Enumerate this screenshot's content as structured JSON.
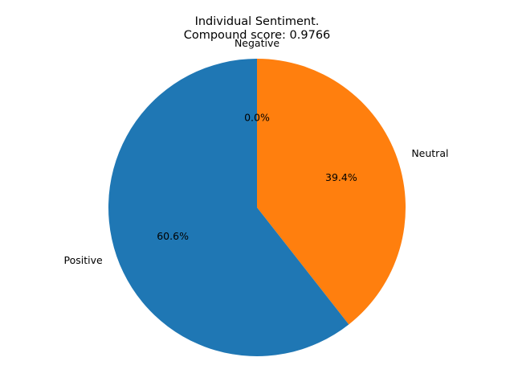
{
  "chart_data": {
    "type": "pie",
    "title_lines": [
      "Individual Sentiment.",
      "Compound score: 0.9766"
    ],
    "categories": [
      "Negative",
      "Neutral",
      "Positive"
    ],
    "values": [
      0.0,
      39.4,
      60.6
    ],
    "percent_labels": [
      "0.0%",
      "39.4%",
      "60.6%"
    ],
    "colors": [
      "#2ca02c",
      "#ff7f0e",
      "#1f77b4"
    ],
    "start_angle_deg": 90,
    "direction": "clockwise"
  }
}
